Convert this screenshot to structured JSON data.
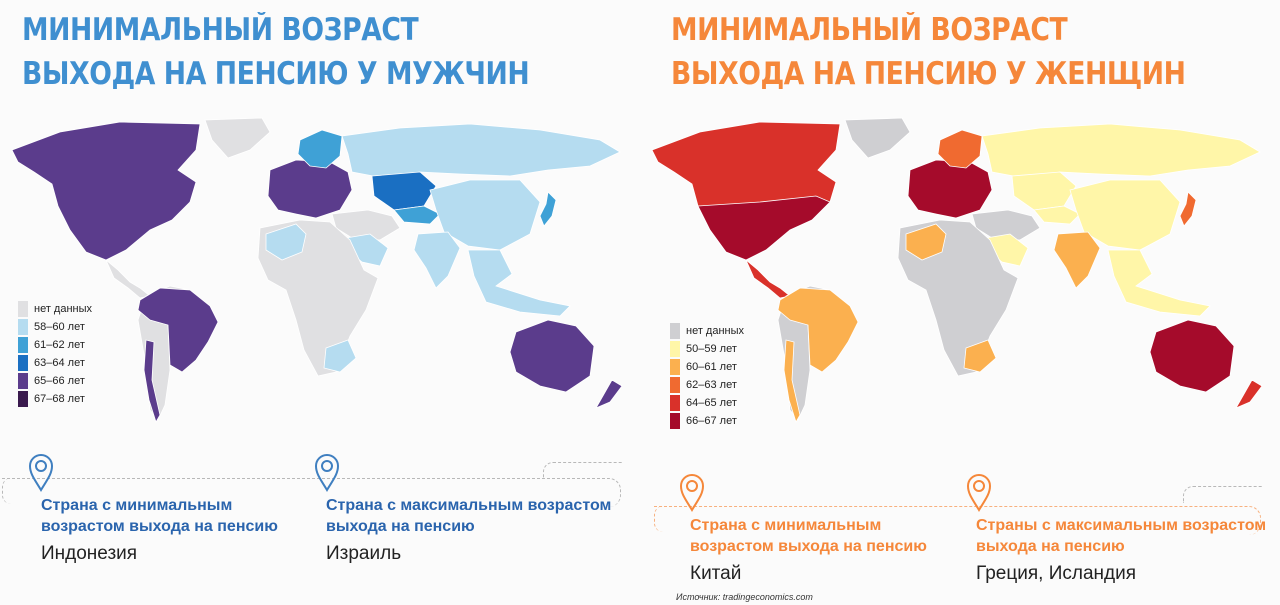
{
  "left": {
    "title_line1": "МИНИМАЛЬНЫЙ ВОЗРАСТ",
    "title_line2": "ВЫХОДА НА ПЕНСИЮ У МУЖЧИН",
    "title_color": "#3f8fd0",
    "legend": [
      {
        "label": "нет данных",
        "color": "#e0e0e2"
      },
      {
        "label": "58–60 лет",
        "color": "#b5dcf0"
      },
      {
        "label": "61–62 лет",
        "color": "#3fa1d6"
      },
      {
        "label": "63–64 лет",
        "color": "#1a6fc2"
      },
      {
        "label": "65–66 лет",
        "color": "#5b3c8c"
      },
      {
        "label": "67–68 лет",
        "color": "#3a1a4e"
      }
    ],
    "min_label_line1": "Страна  с минимальным",
    "min_label_line2": "возрастом выхода на пенсию",
    "min_value": "Индонезия",
    "max_label_line1": "Страна  с максимальным возрастом",
    "max_label_line2": "выхода на пенсию",
    "max_value": "Израиль",
    "label_color": "#2a64ad",
    "pin_color": "#3f7fc0",
    "map_colors": {
      "north_america": "#5b3c8c",
      "greenland": "#e0e0e2",
      "central_america": "#e0e0e2",
      "south_america_main": "#e0e0e2",
      "brazil": "#5b3c8c",
      "chile": "#5b3c8c",
      "europe": "#5b3c8c",
      "scandinavia": "#3fa1d6",
      "russia": "#b5dcf0",
      "kazakhstan": "#1a6fc2",
      "central_asia": "#3fa1d6",
      "middle_east": "#e0e0e2",
      "saudi": "#b5dcf0",
      "africa": "#e0e0e2",
      "north_africa_left": "#b5dcf0",
      "southern_africa": "#b5dcf0",
      "china": "#b5dcf0",
      "india": "#b5dcf0",
      "southeast_asia": "#b5dcf0",
      "japan": "#3fa1d6",
      "australia": "#5b3c8c",
      "new_zealand": "#5b3c8c"
    }
  },
  "right": {
    "title_line1": "МИНИМАЛЬНЫЙ ВОЗРАСТ",
    "title_line2": "ВЫХОДА НА ПЕНСИЮ У ЖЕНЩИН",
    "title_color": "#f5873a",
    "legend": [
      {
        "label": "нет данных",
        "color": "#cfcfd2"
      },
      {
        "label": "50–59 лет",
        "color": "#fff6a8"
      },
      {
        "label": "60–61 лет",
        "color": "#fbb04f"
      },
      {
        "label": "62–63 лет",
        "color": "#f06a30"
      },
      {
        "label": "64–65 лет",
        "color": "#d9312a"
      },
      {
        "label": "66–67 лет",
        "color": "#a50b2b"
      }
    ],
    "min_label_line1": "Страна  с  минимальным",
    "min_label_line2": "возрастом выхода на пенсию",
    "min_value": "Китай",
    "max_label_line1": "Страны с максимальным возрастом",
    "max_label_line2": "выхода на пенсию",
    "max_value": "Греция, Исландия",
    "label_color": "#f5873a",
    "pin_color": "#f5873a",
    "source": "Источник: tradingeconomics.com",
    "map_colors": {
      "north_america": "#d9312a",
      "usa": "#a50b2b",
      "greenland": "#cfcfd2",
      "central_america": "#d9312a",
      "south_america_main": "#cfcfd2",
      "brazil": "#fbb04f",
      "chile": "#fbb04f",
      "europe": "#a50b2b",
      "scandinavia": "#f06a30",
      "russia": "#fff6a8",
      "kazakhstan": "#fff6a8",
      "central_asia": "#fff6a8",
      "middle_east": "#cfcfd2",
      "saudi": "#fff6a8",
      "africa": "#cfcfd2",
      "north_africa_left": "#fbb04f",
      "southern_africa": "#fbb04f",
      "china": "#fff6a8",
      "india": "#fbb04f",
      "southeast_asia": "#fff6a8",
      "japan": "#f06a30",
      "australia": "#a50b2b",
      "new_zealand": "#d9312a"
    }
  }
}
